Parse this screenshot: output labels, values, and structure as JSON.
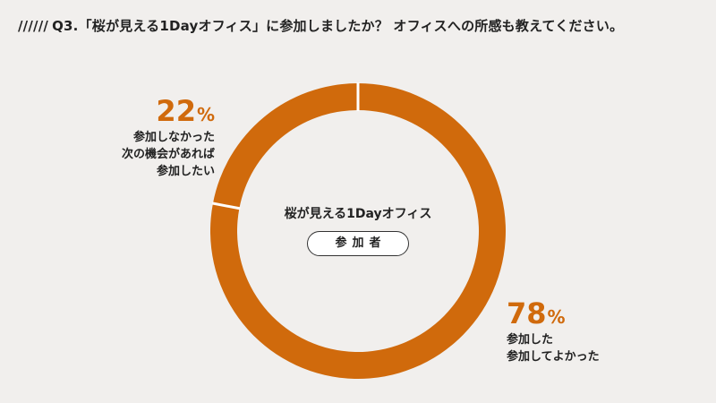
{
  "question": {
    "slashes": "//////",
    "text": "Q3.「桜が見える1Dayオフィス」に参加しましたか？ オフィスへの所感も教えてください。"
  },
  "center": {
    "title": "桜が見える1Dayオフィス",
    "pill": "参加者"
  },
  "colors": {
    "slice": "#d06a0c",
    "separator": "#ffffff",
    "background": "#f1efed",
    "percent_text": "#d06a0c"
  },
  "chart_data": {
    "type": "pie",
    "categories": [
      "参加した 参加してよかった",
      "参加しなかった 次の機会があれば参加したい"
    ],
    "values": [
      78,
      22
    ],
    "unit": "%",
    "donut": true,
    "segments": [
      {
        "value": "78",
        "unit": "%",
        "label_lines": [
          "参加した",
          "参加してよかった"
        ]
      },
      {
        "value": "22",
        "unit": "%",
        "label_lines": [
          "参加しなかった",
          "次の機会があれば",
          "参加したい"
        ]
      }
    ]
  }
}
